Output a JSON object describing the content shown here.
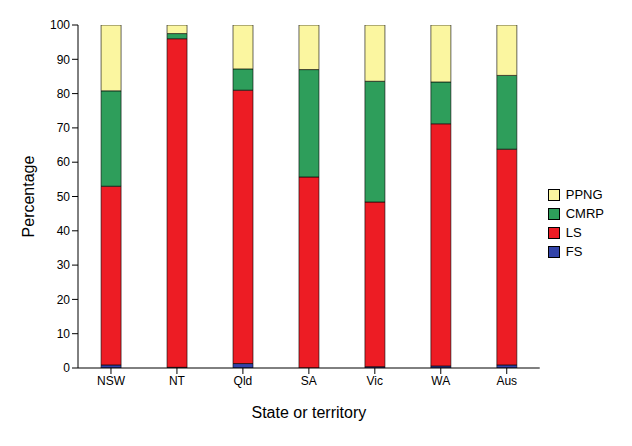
{
  "chart_data": {
    "type": "bar",
    "stacked": true,
    "x_label": "State or territory",
    "y_label": "Percentage",
    "categories": [
      "NSW",
      "NT",
      "Qld",
      "SA",
      "Vic",
      "WA",
      "Aus"
    ],
    "series": [
      {
        "name": "FS",
        "color": "#3344aa",
        "values": [
          0.9,
          0.2,
          1.3,
          0,
          0.4,
          0.6,
          0.9
        ]
      },
      {
        "name": "LS",
        "color": "#ed1c24",
        "values": [
          52.1,
          95.8,
          79.7,
          55.7,
          48.0,
          70.6,
          62.9
        ]
      },
      {
        "name": "CMRP",
        "color": "#2e9e5b",
        "values": [
          27.8,
          1.5,
          6.2,
          31.3,
          35.2,
          12.2,
          21.5
        ]
      },
      {
        "name": "PPNG",
        "color": "#fbf6a0",
        "values": [
          19.2,
          2.5,
          12.8,
          13.0,
          16.4,
          16.6,
          14.7
        ]
      }
    ],
    "ylim": [
      0,
      100
    ],
    "yticks": [
      0,
      10,
      20,
      30,
      40,
      50,
      60,
      70,
      80,
      90,
      100
    ],
    "grid": false,
    "legend": "right"
  }
}
